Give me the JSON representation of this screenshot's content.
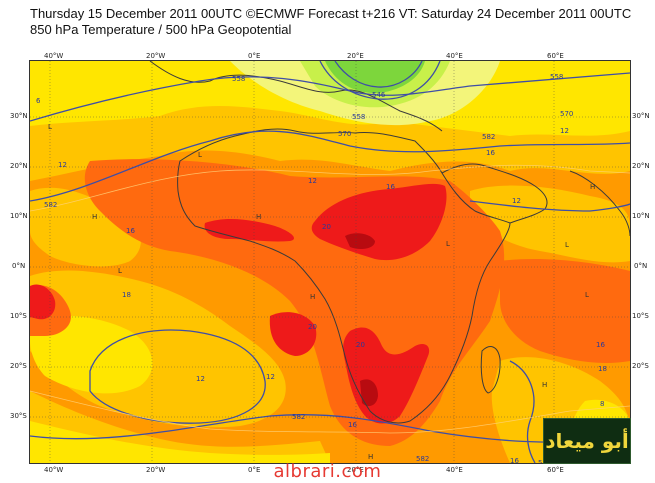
{
  "header": {
    "line1": "Thursday 15 December 2011 00UTC ©ECMWF Forecast t+216 VT: Saturday 24 December 2011 00UTC",
    "line2": "850 hPa Temperature / 500 hPa Geopotential"
  },
  "axes": {
    "lon_ticks": [
      "40°W",
      "20°W",
      "0°E",
      "20°E",
      "40°E",
      "60°E"
    ],
    "lat_ticks": [
      "30°N",
      "20°N",
      "10°N",
      "0°N",
      "10°S",
      "20°S",
      "30°S"
    ]
  },
  "contour_labels": {
    "temperature": [
      "6",
      "12",
      "12",
      "16",
      "16",
      "18",
      "20",
      "20",
      "20",
      "16",
      "12",
      "12",
      "16",
      "16",
      "12",
      "12",
      "8",
      "18",
      "16"
    ],
    "geopotential": [
      "558",
      "570",
      "582",
      "582",
      "546",
      "570",
      "582",
      "582",
      "558",
      "558",
      "582"
    ]
  },
  "high_low_marks": [
    "L",
    "L",
    "H",
    "H",
    "L",
    "H",
    "L",
    "L",
    "H",
    "L",
    "H",
    "H"
  ],
  "colors": {
    "cold_green": "#7dd63c",
    "light_green": "#c8f04a",
    "pale_yellow": "#f3f57a",
    "yellow": "#ffe600",
    "gold": "#ffc400",
    "orange": "#ff9a00",
    "dark_orange": "#ff6a0f",
    "red": "#ee1a1a",
    "deep_red": "#b80b10",
    "contour": "#3f4ea6",
    "coast": "#3b3b3b"
  },
  "watermark": "albrari.com",
  "logo_text": "أبو ميعاد"
}
